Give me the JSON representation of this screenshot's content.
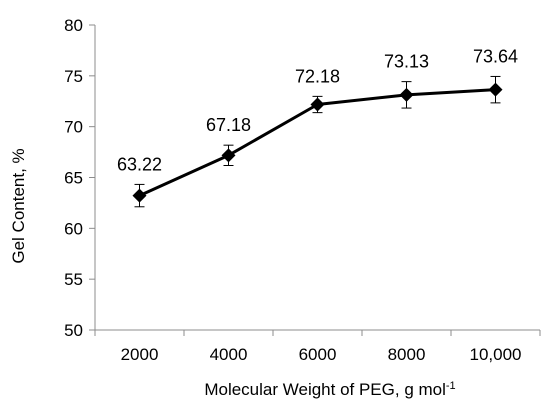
{
  "chart_data": {
    "type": "line",
    "categories": [
      "2000",
      "4000",
      "6000",
      "8000",
      "10,000"
    ],
    "series": [
      {
        "values": [
          63.22,
          67.18,
          72.18,
          73.13,
          73.64
        ],
        "error": [
          1.1,
          1.0,
          0.8,
          1.3,
          1.3
        ],
        "data_labels": [
          "63.22",
          "67.18",
          "72.18",
          "73.13",
          "73.64"
        ],
        "marker": "diamond",
        "color": "#000000"
      }
    ],
    "ylim": [
      50,
      80
    ],
    "yticks": [
      "50",
      "55",
      "60",
      "65",
      "70",
      "75",
      "80"
    ],
    "ylabel": "Gel Content, %",
    "xlabel": "Molecular Weight of PEG, g mol",
    "xlabel_superscript": "-1",
    "grid": false,
    "legend": "none"
  }
}
